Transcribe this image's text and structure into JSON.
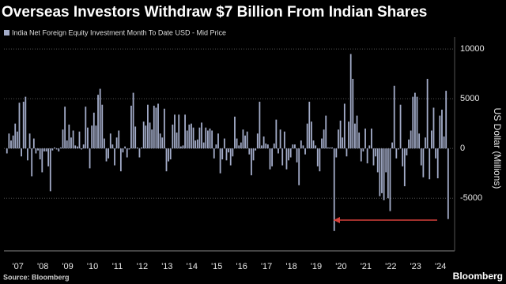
{
  "chart_data": {
    "type": "bar",
    "title": "Overseas Investors Withdraw $7 Billion From Indian Shares",
    "legend_label": "India Net Foreign Equity Investment Month To Date USD - Mid Price",
    "y_label": "US Dollar (Millions)",
    "source": "Source: Bloomberg",
    "brand": "Bloomberg",
    "color": "#a3acc9",
    "grid": true,
    "ylim": [
      -10300,
      11200
    ],
    "yticks": [
      -5000,
      0,
      5000,
      10000
    ],
    "categories": [
      null,
      null,
      null,
      null,
      null,
      null,
      "'07",
      null,
      null,
      null,
      null,
      null,
      null,
      null,
      null,
      null,
      null,
      null,
      "'08",
      null,
      null,
      null,
      null,
      null,
      null,
      null,
      null,
      null,
      null,
      null,
      "'09",
      null,
      null,
      null,
      null,
      null,
      null,
      null,
      null,
      null,
      null,
      null,
      "'10",
      null,
      null,
      null,
      null,
      null,
      null,
      null,
      null,
      null,
      null,
      null,
      "'11",
      null,
      null,
      null,
      null,
      null,
      null,
      null,
      null,
      null,
      null,
      null,
      "'12",
      null,
      null,
      null,
      null,
      null,
      null,
      null,
      null,
      null,
      null,
      null,
      "'13",
      null,
      null,
      null,
      null,
      null,
      null,
      null,
      null,
      null,
      null,
      null,
      "'14",
      null,
      null,
      null,
      null,
      null,
      null,
      null,
      null,
      null,
      null,
      null,
      "'15",
      null,
      null,
      null,
      null,
      null,
      null,
      null,
      null,
      null,
      null,
      null,
      "'16",
      null,
      null,
      null,
      null,
      null,
      null,
      null,
      null,
      null,
      null,
      null,
      "'17",
      null,
      null,
      null,
      null,
      null,
      null,
      null,
      null,
      null,
      null,
      null,
      "'18",
      null,
      null,
      null,
      null,
      null,
      null,
      null,
      null,
      null,
      null,
      null,
      "'19",
      null,
      null,
      null,
      null,
      null,
      null,
      null,
      null,
      null,
      null,
      null,
      "'20",
      null,
      null,
      null,
      null,
      null,
      null,
      null,
      null,
      null,
      null,
      null,
      "'21",
      null,
      null,
      null,
      null,
      null,
      null,
      null,
      null,
      null,
      null,
      null,
      "'22",
      null,
      null,
      null,
      null,
      null,
      null,
      null,
      null,
      null,
      null,
      null,
      "'23",
      null,
      null,
      null,
      null,
      null,
      null,
      null,
      null,
      null,
      null,
      null,
      "'24",
      null,
      null,
      null
    ],
    "values": [
      -500,
      1500,
      800,
      1300,
      2500,
      1700,
      4600,
      -800,
      4700,
      5200,
      -1200,
      1500,
      -2800,
      1000,
      -500,
      -200,
      -1100,
      -2400,
      -300,
      -300,
      -1800,
      -4300,
      -200,
      100,
      -100,
      -300,
      100,
      1900,
      4200,
      800,
      2400,
      1100,
      1800,
      300,
      200,
      1700,
      -100,
      400,
      4200,
      2100,
      -2000,
      2300,
      3600,
      2300,
      5400,
      6000,
      4400,
      1000,
      -1300,
      -1000,
      1500,
      400,
      -1700,
      1100,
      1800,
      -2300,
      -400,
      200,
      -900,
      -100,
      4300,
      5600,
      2200,
      100,
      -900,
      100,
      2700,
      2300,
      4400,
      2600,
      1900,
      4300,
      4100,
      4500,
      1500,
      1100,
      4000,
      -2300,
      -1300,
      -1100,
      2400,
      3400,
      1600,
      3400,
      200,
      300,
      3400,
      1800,
      2400,
      2500,
      2100,
      800,
      900,
      2100,
      2600,
      600,
      2100,
      1800,
      2000,
      1800,
      -1000,
      400,
      1500,
      -2500,
      -1100,
      1000,
      -1200,
      -400,
      -1700,
      -800,
      3200,
      1000,
      300,
      600,
      1900,
      1300,
      1700,
      -600,
      -2700,
      -1200,
      -200,
      1500,
      4700,
      300,
      1200,
      500,
      400,
      -2100,
      -1800,
      500,
      2900,
      -500,
      1900,
      -1700,
      1700,
      -2100,
      -1200,
      -900,
      400,
      400,
      -1400,
      -3700,
      800,
      300,
      -600,
      2500,
      4700,
      2700,
      800,
      300,
      -1800,
      -2300,
      1000,
      1900,
      3300,
      100,
      100,
      100,
      -8300,
      -900,
      1900,
      2800,
      1100,
      4500,
      -800,
      2700,
      9500,
      7000,
      2500,
      3300,
      1600,
      -1300,
      -300,
      2000,
      -1500,
      300,
      2000,
      -1700,
      -800,
      -2400,
      -4800,
      -4500,
      -5200,
      -2400,
      -5000,
      -6300,
      600,
      6300,
      -1000,
      -100,
      4400,
      -1800,
      -3800,
      -700,
      900,
      1800,
      5200,
      5600,
      5200,
      1500,
      -1700,
      -2900,
      1100,
      7000,
      -3100,
      1800,
      4100,
      -1000,
      -3000,
      3300,
      3900,
      1200,
      5800,
      -7100
    ]
  }
}
